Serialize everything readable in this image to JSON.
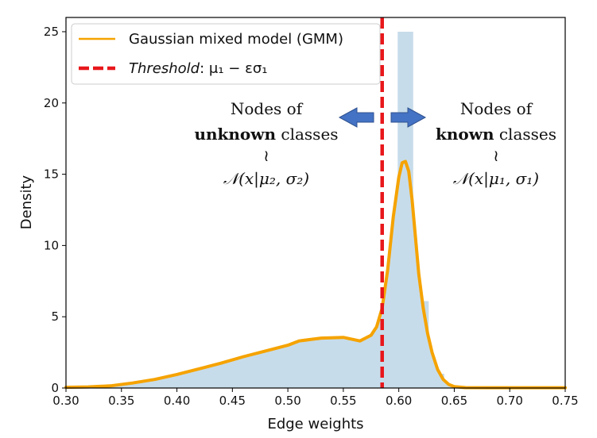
{
  "chart_data": {
    "type": "area",
    "xlabel": "Edge weights",
    "ylabel": "Density",
    "xlim": [
      0.3,
      0.75
    ],
    "ylim": [
      0,
      26
    ],
    "x_ticks": [
      "0.30",
      "0.35",
      "0.40",
      "0.45",
      "0.50",
      "0.55",
      "0.60",
      "0.65",
      "0.70",
      "0.75"
    ],
    "y_ticks": [
      "0",
      "5",
      "10",
      "15",
      "20",
      "25"
    ],
    "colors": {
      "histogram": "#c7dcea",
      "gmm": "#f5a300",
      "threshold": "#e8171b",
      "arrow": "#4472c4"
    },
    "histogram": {
      "edges": [
        0.585,
        0.599,
        0.613,
        0.627,
        0.641
      ],
      "values": [
        3.1,
        25.0,
        6.1,
        1.0
      ]
    },
    "gmm_curve": {
      "name": "Gaussian mixed model (GMM)",
      "x": [
        0.3,
        0.32,
        0.34,
        0.36,
        0.38,
        0.4,
        0.42,
        0.44,
        0.46,
        0.48,
        0.5,
        0.51,
        0.53,
        0.55,
        0.565,
        0.575,
        0.58,
        0.585,
        0.59,
        0.595,
        0.6,
        0.603,
        0.606,
        0.609,
        0.612,
        0.615,
        0.618,
        0.622,
        0.626,
        0.63,
        0.635,
        0.64,
        0.645,
        0.65,
        0.66,
        0.68,
        0.7,
        0.75
      ],
      "y": [
        0.05,
        0.08,
        0.15,
        0.35,
        0.6,
        0.95,
        1.35,
        1.75,
        2.2,
        2.6,
        3.0,
        3.3,
        3.5,
        3.55,
        3.3,
        3.7,
        4.3,
        5.6,
        8.3,
        12.0,
        14.8,
        15.8,
        15.9,
        15.2,
        13.2,
        10.6,
        8.0,
        5.6,
        3.8,
        2.5,
        1.3,
        0.6,
        0.25,
        0.1,
        0.03,
        0.02,
        0.02,
        0.02
      ]
    },
    "threshold": {
      "x": 0.585,
      "label_prefix": "Threshold",
      "label_suffix": ": μ₁ − εσ₁"
    },
    "annotations": {
      "left": {
        "line1": "Nodes of",
        "line2_bold": "unknown",
        "line2_rest": " classes",
        "tilde": "≀",
        "formula": "𝒩(x|μ₂, σ₂)"
      },
      "right": {
        "line1": "Nodes of",
        "line2_bold": "known",
        "line2_rest": " classes",
        "tilde": "≀",
        "formula": "𝒩(x|μ₁, σ₁)"
      }
    }
  }
}
